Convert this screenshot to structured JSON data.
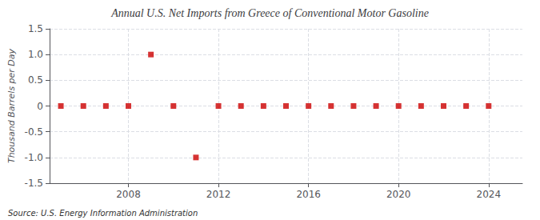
{
  "chart_data": {
    "type": "scatter",
    "title": "Annual U.S. Net Imports from Greece of Conventional Motor Gasoline",
    "ylabel": "Thousand Barrels per Day",
    "annotations": [
      "Source: U.S. Energy Information Administration"
    ],
    "x": [
      2005,
      2006,
      2007,
      2008,
      2009,
      2010,
      2011,
      2012,
      2013,
      2014,
      2015,
      2016,
      2017,
      2018,
      2019,
      2020,
      2021,
      2022,
      2023,
      2024
    ],
    "values": [
      0,
      0,
      0,
      0,
      1,
      0,
      -1,
      0,
      0,
      0,
      0,
      0,
      0,
      0,
      0,
      0,
      0,
      0,
      0,
      0
    ],
    "color": "#cc0000",
    "marker": "square",
    "xlim": [
      2004.5,
      2025.5
    ],
    "xticks": [
      2008,
      2012,
      2016,
      2020,
      2024
    ],
    "ylim": [
      -1.5,
      1.5
    ],
    "yticks": [
      -1.5,
      {
        "value": -1.0,
        "label": "-1.0"
      },
      -0.5,
      0,
      0.5,
      {
        "value": 1.0,
        "label": "1.0"
      },
      1.5
    ],
    "grid": true
  }
}
